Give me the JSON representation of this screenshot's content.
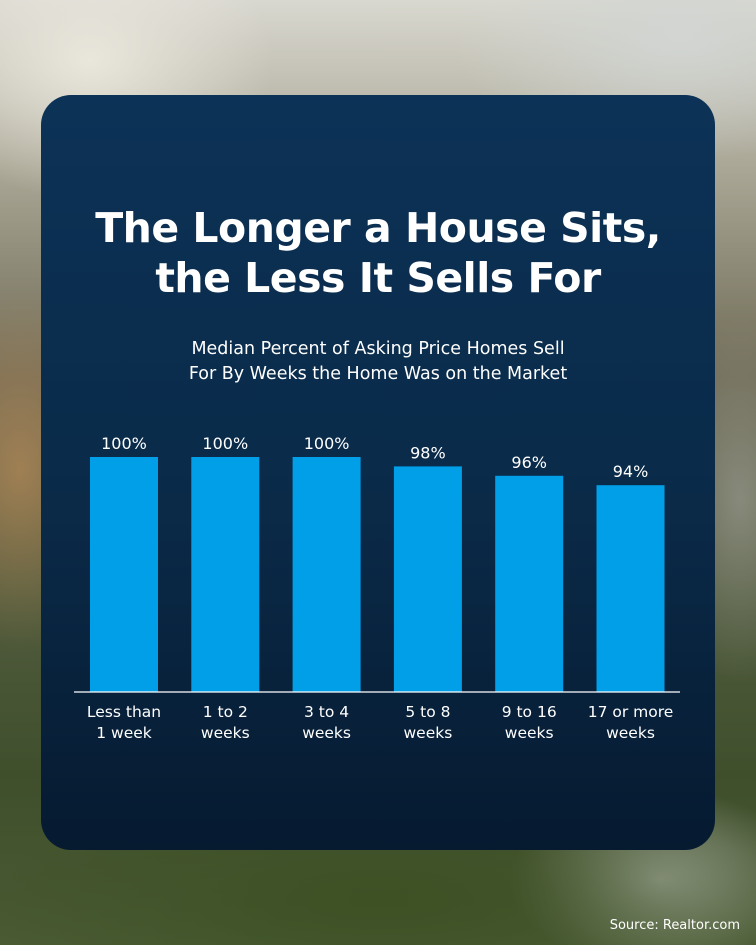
{
  "title_lines": [
    "The Longer a House Sits,",
    "the Less It Sells For"
  ],
  "subtitle_lines": [
    "Median Percent of Asking Price Homes Sell",
    "For By Weeks the Home Was on the Market"
  ],
  "source": "Source: Realtor.com",
  "colors": {
    "bar": "#019fe8",
    "card_top": "#0c3257",
    "card_bottom": "#061a30",
    "text": "#ffffff"
  },
  "chart_data": {
    "type": "bar",
    "categories": [
      [
        "Less than",
        "1 week"
      ],
      [
        "1 to 2",
        "weeks"
      ],
      [
        "3 to 4",
        "weeks"
      ],
      [
        "5 to 8",
        "weeks"
      ],
      [
        "9 to 16",
        "weeks"
      ],
      [
        "17 or more",
        "weeks"
      ]
    ],
    "values": [
      100,
      100,
      100,
      98,
      96,
      94
    ],
    "data_labels": [
      "100%",
      "100%",
      "100%",
      "98%",
      "96%",
      "94%"
    ],
    "ylim": [
      50,
      100
    ],
    "grid": false,
    "legend": "none"
  }
}
